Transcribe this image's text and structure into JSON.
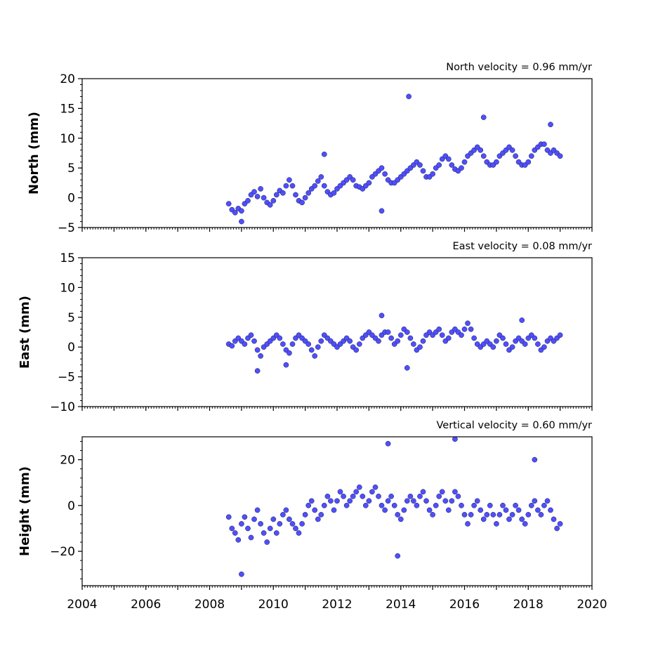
{
  "chart_data": [
    {
      "type": "scatter",
      "title": "North velocity = 0.96 mm/yr",
      "ylabel": "North (mm)",
      "xlim": [
        2004,
        2020
      ],
      "ylim": [
        -5,
        20
      ],
      "yticks": [
        -5,
        0,
        5,
        10,
        15,
        20
      ],
      "xticks": [],
      "marker_color": "#4f4fff",
      "series": [
        {
          "x": [
            2008.6,
            2008.7,
            2008.8,
            2008.9,
            2009.0,
            2009.1,
            2009.2,
            2009.3,
            2009.4,
            2009.5,
            2009.6,
            2009.7,
            2009.8,
            2009.9,
            2010.0,
            2010.1,
            2010.2,
            2010.3,
            2010.4,
            2010.5,
            2010.6,
            2010.7,
            2010.8,
            2010.9,
            2011.0,
            2011.1,
            2011.2,
            2011.3,
            2011.4,
            2011.5,
            2011.6,
            2011.7,
            2011.8,
            2011.9,
            2012.0,
            2012.1,
            2012.2,
            2012.3,
            2012.4,
            2012.5,
            2012.6,
            2012.7,
            2012.8,
            2012.9,
            2013.0,
            2013.1,
            2013.2,
            2013.3,
            2013.4,
            2013.5,
            2013.6,
            2013.7,
            2013.8,
            2013.9,
            2014.0,
            2014.1,
            2014.2,
            2014.3,
            2014.4,
            2014.5,
            2014.6,
            2014.7,
            2014.8,
            2014.9,
            2015.0,
            2015.1,
            2015.2,
            2015.3,
            2015.4,
            2015.5,
            2015.6,
            2015.7,
            2015.8,
            2015.9,
            2016.0,
            2016.1,
            2016.2,
            2016.3,
            2016.4,
            2016.5,
            2016.6,
            2016.7,
            2016.8,
            2016.9,
            2017.0,
            2017.1,
            2017.2,
            2017.3,
            2017.4,
            2017.5,
            2017.6,
            2017.7,
            2017.8,
            2017.9,
            2018.0,
            2018.1,
            2018.2,
            2018.3,
            2018.4,
            2018.5,
            2018.6,
            2018.7,
            2018.8,
            2018.9,
            2019.0,
            2014.25,
            2016.6,
            2011.6,
            2013.4,
            2018.7,
            2009.0
          ],
          "y": [
            -1.0,
            -2.0,
            -2.5,
            -1.8,
            -2.2,
            -1.0,
            -0.5,
            0.5,
            1.0,
            0.2,
            1.5,
            0.0,
            -0.8,
            -1.2,
            -0.5,
            0.5,
            1.2,
            0.8,
            2.0,
            3.0,
            2.0,
            0.5,
            -0.5,
            -0.8,
            0.0,
            0.8,
            1.5,
            2.0,
            2.8,
            3.5,
            2.0,
            1.0,
            0.5,
            0.8,
            1.5,
            2.0,
            2.5,
            3.0,
            3.5,
            3.0,
            2.0,
            1.8,
            1.5,
            2.0,
            2.5,
            3.5,
            4.0,
            4.5,
            5.0,
            4.0,
            3.0,
            2.5,
            2.5,
            3.0,
            3.5,
            4.0,
            4.5,
            5.0,
            5.5,
            6.0,
            5.5,
            4.5,
            3.5,
            3.5,
            4.0,
            5.0,
            5.5,
            6.5,
            7.0,
            6.5,
            5.5,
            4.8,
            4.5,
            5.0,
            6.0,
            7.0,
            7.5,
            8.0,
            8.5,
            8.0,
            7.0,
            6.0,
            5.5,
            5.5,
            6.0,
            7.0,
            7.5,
            8.0,
            8.5,
            8.0,
            7.0,
            6.0,
            5.5,
            5.5,
            6.0,
            7.0,
            8.0,
            8.5,
            9.0,
            9.0,
            8.0,
            7.5,
            8.0,
            7.5,
            7.0,
            17.0,
            13.5,
            7.3,
            -2.2,
            12.3,
            -4.0
          ]
        }
      ]
    },
    {
      "type": "scatter",
      "title": "East velocity = 0.08 mm/yr",
      "ylabel": "East (mm)",
      "xlim": [
        2004,
        2020
      ],
      "ylim": [
        -10,
        15
      ],
      "yticks": [
        -10,
        -5,
        0,
        5,
        10,
        15
      ],
      "xticks": [],
      "marker_color": "#4f4fff",
      "series": [
        {
          "x": [
            2008.6,
            2008.7,
            2008.8,
            2008.9,
            2009.0,
            2009.1,
            2009.2,
            2009.3,
            2009.4,
            2009.5,
            2009.6,
            2009.7,
            2009.8,
            2009.9,
            2010.0,
            2010.1,
            2010.2,
            2010.3,
            2010.4,
            2010.5,
            2010.6,
            2010.7,
            2010.8,
            2010.9,
            2011.0,
            2011.1,
            2011.2,
            2011.3,
            2011.4,
            2011.5,
            2011.6,
            2011.7,
            2011.8,
            2011.9,
            2012.0,
            2012.1,
            2012.2,
            2012.3,
            2012.4,
            2012.5,
            2012.6,
            2012.7,
            2012.8,
            2012.9,
            2013.0,
            2013.1,
            2013.2,
            2013.3,
            2013.4,
            2013.5,
            2013.6,
            2013.7,
            2013.8,
            2013.9,
            2014.0,
            2014.1,
            2014.2,
            2014.3,
            2014.4,
            2014.5,
            2014.6,
            2014.7,
            2014.8,
            2014.9,
            2015.0,
            2015.1,
            2015.2,
            2015.3,
            2015.4,
            2015.5,
            2015.6,
            2015.7,
            2015.8,
            2015.9,
            2016.0,
            2016.1,
            2016.2,
            2016.3,
            2016.4,
            2016.5,
            2016.6,
            2016.7,
            2016.8,
            2016.9,
            2017.0,
            2017.1,
            2017.2,
            2017.3,
            2017.4,
            2017.5,
            2017.6,
            2017.7,
            2017.8,
            2017.9,
            2018.0,
            2018.1,
            2018.2,
            2018.3,
            2018.4,
            2018.5,
            2018.6,
            2018.7,
            2018.8,
            2018.9,
            2019.0,
            2013.4,
            2009.5,
            2014.2,
            2010.4,
            2017.8
          ],
          "y": [
            0.5,
            0.2,
            1.0,
            1.5,
            1.0,
            0.5,
            1.5,
            2.0,
            1.0,
            -0.5,
            -1.5,
            0.0,
            0.5,
            1.0,
            1.5,
            2.0,
            1.5,
            0.5,
            -0.5,
            -1.0,
            0.5,
            1.5,
            2.0,
            1.5,
            1.0,
            0.5,
            -0.5,
            -1.5,
            0.0,
            1.0,
            2.0,
            1.5,
            1.0,
            0.5,
            0.0,
            0.5,
            1.0,
            1.5,
            1.0,
            0.0,
            -0.5,
            0.5,
            1.5,
            2.0,
            2.5,
            2.0,
            1.5,
            1.0,
            2.0,
            2.5,
            2.5,
            1.5,
            0.5,
            1.0,
            2.0,
            3.0,
            2.5,
            1.5,
            0.5,
            -0.5,
            0.0,
            1.0,
            2.0,
            2.5,
            2.0,
            2.5,
            3.0,
            2.0,
            1.0,
            1.5,
            2.5,
            3.0,
            2.5,
            2.0,
            3.0,
            4.0,
            3.0,
            1.5,
            0.5,
            0.0,
            0.5,
            1.0,
            0.5,
            0.0,
            1.0,
            2.0,
            1.5,
            0.5,
            -0.5,
            0.0,
            1.0,
            1.5,
            1.0,
            0.5,
            1.5,
            2.0,
            1.5,
            0.5,
            -0.5,
            0.0,
            1.0,
            1.5,
            1.0,
            1.5,
            2.0,
            5.3,
            -4.0,
            -3.5,
            -3.0,
            4.5
          ]
        }
      ]
    },
    {
      "type": "scatter",
      "title": "Vertical velocity = 0.60 mm/yr",
      "ylabel": "Height (mm)",
      "xlim": [
        2004,
        2020
      ],
      "ylim": [
        -35,
        30
      ],
      "yticks": [
        -20,
        0,
        20
      ],
      "xticks": [
        2004,
        2006,
        2008,
        2010,
        2012,
        2014,
        2016,
        2018,
        2020
      ],
      "marker_color": "#4f4fff",
      "series": [
        {
          "x": [
            2008.6,
            2008.7,
            2008.8,
            2008.9,
            2009.0,
            2009.1,
            2009.2,
            2009.3,
            2009.4,
            2009.5,
            2009.6,
            2009.7,
            2009.8,
            2009.9,
            2010.0,
            2010.1,
            2010.2,
            2010.3,
            2010.4,
            2010.5,
            2010.6,
            2010.7,
            2010.8,
            2010.9,
            2011.0,
            2011.1,
            2011.2,
            2011.3,
            2011.4,
            2011.5,
            2011.6,
            2011.7,
            2011.8,
            2011.9,
            2012.0,
            2012.1,
            2012.2,
            2012.3,
            2012.4,
            2012.5,
            2012.6,
            2012.7,
            2012.8,
            2012.9,
            2013.0,
            2013.1,
            2013.2,
            2013.3,
            2013.4,
            2013.5,
            2013.6,
            2013.7,
            2013.8,
            2013.9,
            2014.0,
            2014.1,
            2014.2,
            2014.3,
            2014.4,
            2014.5,
            2014.6,
            2014.7,
            2014.8,
            2014.9,
            2015.0,
            2015.1,
            2015.2,
            2015.3,
            2015.4,
            2015.5,
            2015.6,
            2015.7,
            2015.8,
            2015.9,
            2016.0,
            2016.1,
            2016.2,
            2016.3,
            2016.4,
            2016.5,
            2016.6,
            2016.7,
            2016.8,
            2016.9,
            2017.0,
            2017.1,
            2017.2,
            2017.3,
            2017.4,
            2017.5,
            2017.6,
            2017.7,
            2017.8,
            2017.9,
            2018.0,
            2018.1,
            2018.2,
            2018.3,
            2018.4,
            2018.5,
            2018.6,
            2018.7,
            2018.8,
            2018.9,
            2019.0,
            2013.6,
            2015.7,
            2009.0,
            2018.2,
            2013.9
          ],
          "y": [
            -5.0,
            -10.0,
            -12.0,
            -15.0,
            -8.0,
            -5.0,
            -10.0,
            -14.0,
            -6.0,
            -2.0,
            -8.0,
            -12.0,
            -16.0,
            -10.0,
            -6.0,
            -12.0,
            -8.0,
            -4.0,
            -2.0,
            -6.0,
            -8.0,
            -10.0,
            -12.0,
            -8.0,
            -4.0,
            0.0,
            2.0,
            -2.0,
            -6.0,
            -4.0,
            0.0,
            4.0,
            2.0,
            -2.0,
            2.0,
            6.0,
            4.0,
            0.0,
            2.0,
            4.0,
            6.0,
            8.0,
            4.0,
            0.0,
            2.0,
            6.0,
            8.0,
            4.0,
            0.0,
            -2.0,
            2.0,
            4.0,
            0.0,
            -4.0,
            -6.0,
            -2.0,
            2.0,
            4.0,
            2.0,
            0.0,
            4.0,
            6.0,
            2.0,
            -2.0,
            -4.0,
            0.0,
            4.0,
            6.0,
            2.0,
            -2.0,
            2.0,
            6.0,
            4.0,
            0.0,
            -4.0,
            -8.0,
            -4.0,
            0.0,
            2.0,
            -2.0,
            -6.0,
            -4.0,
            0.0,
            -4.0,
            -8.0,
            -4.0,
            0.0,
            -2.0,
            -6.0,
            -4.0,
            0.0,
            -2.0,
            -6.0,
            -8.0,
            -4.0,
            0.0,
            2.0,
            -2.0,
            -4.0,
            0.0,
            2.0,
            -2.0,
            -6.0,
            -10.0,
            -8.0,
            27.0,
            29.0,
            -30.0,
            20.0,
            -22.0
          ]
        }
      ]
    }
  ]
}
